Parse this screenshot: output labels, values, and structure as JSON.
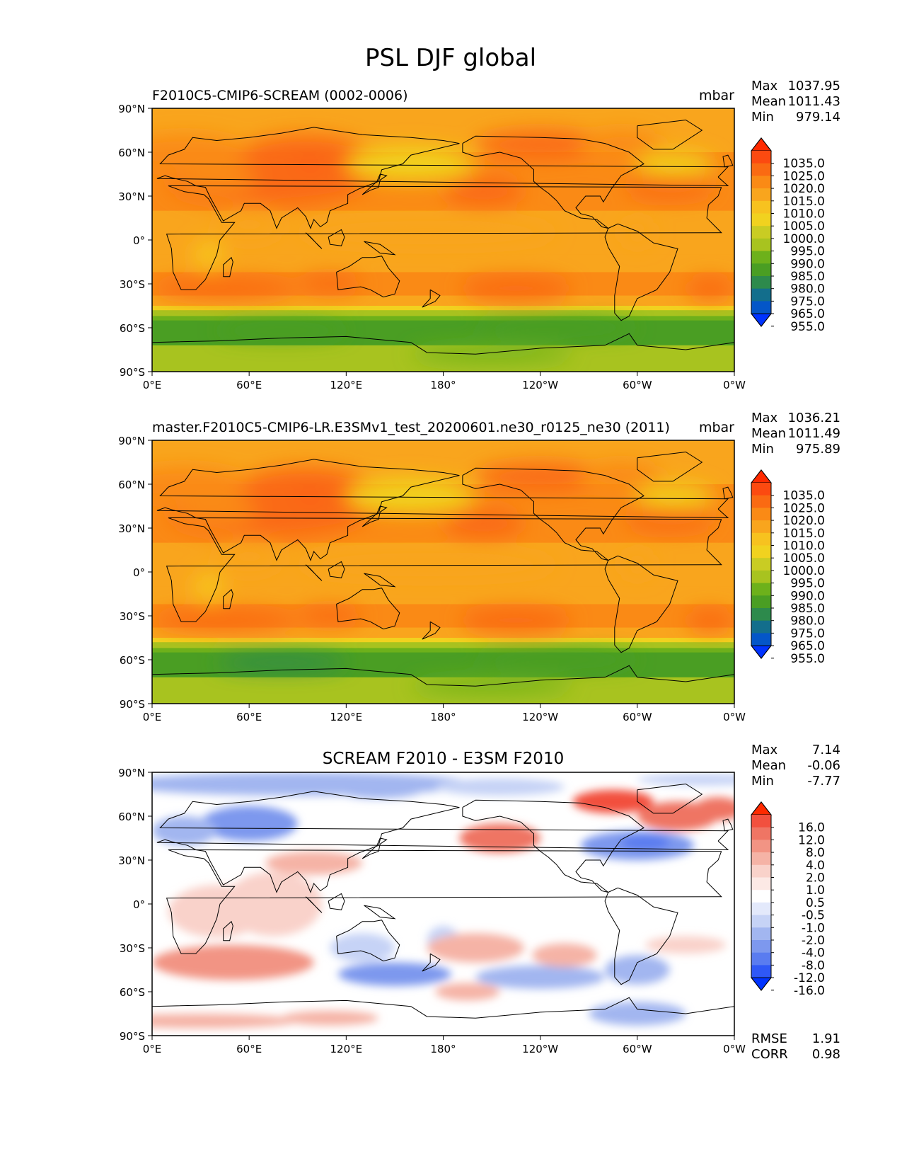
{
  "title": "PSL DJF global",
  "units": "mbar",
  "stat_labels": {
    "max": "Max",
    "mean": "Mean",
    "min": "Min",
    "rmse": "RMSE",
    "corr": "CORR"
  },
  "lon_ticks": [
    "0°E",
    "60°E",
    "120°E",
    "180°",
    "120°W",
    "60°W",
    "0°W"
  ],
  "lat_ticks": [
    "90°N",
    "60°N",
    "30°N",
    "0°",
    "30°S",
    "60°S",
    "90°S"
  ],
  "colors": {
    "ocean_base": "#f9a51d",
    "land_line": "#000000",
    "diff_base": "#ffffff"
  },
  "panels": [
    {
      "id": "test",
      "title": "F2010C5-CMIP6-SCREAM (0002-0006)",
      "units": "mbar",
      "stats": {
        "max": "1037.95",
        "mean": "1011.43",
        "min": "979.14"
      },
      "colorbar": {
        "labels": [
          "1035.0",
          "1025.0",
          "1020.0",
          "1015.0",
          "1010.0",
          "1005.0",
          "1000.0",
          "995.0",
          "990.0",
          "985.0",
          "980.0",
          "975.0",
          "965.0",
          "955.0"
        ],
        "colors": [
          "#ff2a00",
          "#fc4a10",
          "#fa6a12",
          "#fa8a15",
          "#f9a51d",
          "#f7c21f",
          "#f1d21f",
          "#c9cc23",
          "#a8c31f",
          "#6db11b",
          "#4a9e23",
          "#2d8a4c",
          "#136e8c",
          "#0456c8",
          "#0033ff"
        ]
      }
    },
    {
      "id": "ref",
      "title": "master.F2010C5-CMIP6-LR.E3SMv1_test_20200601.ne30_r0125_ne30 (2011)",
      "units": "mbar",
      "stats": {
        "max": "1036.21",
        "mean": "1011.49",
        "min": "975.89"
      },
      "colorbar": {
        "labels": [
          "1035.0",
          "1025.0",
          "1020.0",
          "1015.0",
          "1010.0",
          "1005.0",
          "1000.0",
          "995.0",
          "990.0",
          "985.0",
          "980.0",
          "975.0",
          "965.0",
          "955.0"
        ],
        "colors": [
          "#ff2a00",
          "#fc4a10",
          "#fa6a12",
          "#fa8a15",
          "#f9a51d",
          "#f7c21f",
          "#f1d21f",
          "#c9cc23",
          "#a8c31f",
          "#6db11b",
          "#4a9e23",
          "#2d8a4c",
          "#136e8c",
          "#0456c8",
          "#0033ff"
        ]
      }
    },
    {
      "id": "diff",
      "title": "SCREAM F2010 - E3SM F2010",
      "units": "",
      "stats": {
        "max": "7.14",
        "mean": "-0.06",
        "min": "-7.77"
      },
      "rmse": "1.91",
      "corr": "0.98",
      "colorbar": {
        "labels": [
          "16.0",
          "12.0",
          "8.0",
          "4.0",
          "2.0",
          "1.0",
          "0.5",
          "-0.5",
          "-1.0",
          "-2.0",
          "-4.0",
          "-8.0",
          "-12.0",
          "-16.0"
        ],
        "colors": [
          "#ff2a00",
          "#f2503e",
          "#ef7564",
          "#f29484",
          "#f5b3a6",
          "#f9d2ca",
          "#fce9e5",
          "#ffffff",
          "#e3e9fb",
          "#c6d3f6",
          "#a2b6f0",
          "#7d98ee",
          "#5a7cf0",
          "#2f58f6",
          "#0033ff"
        ]
      }
    }
  ]
}
